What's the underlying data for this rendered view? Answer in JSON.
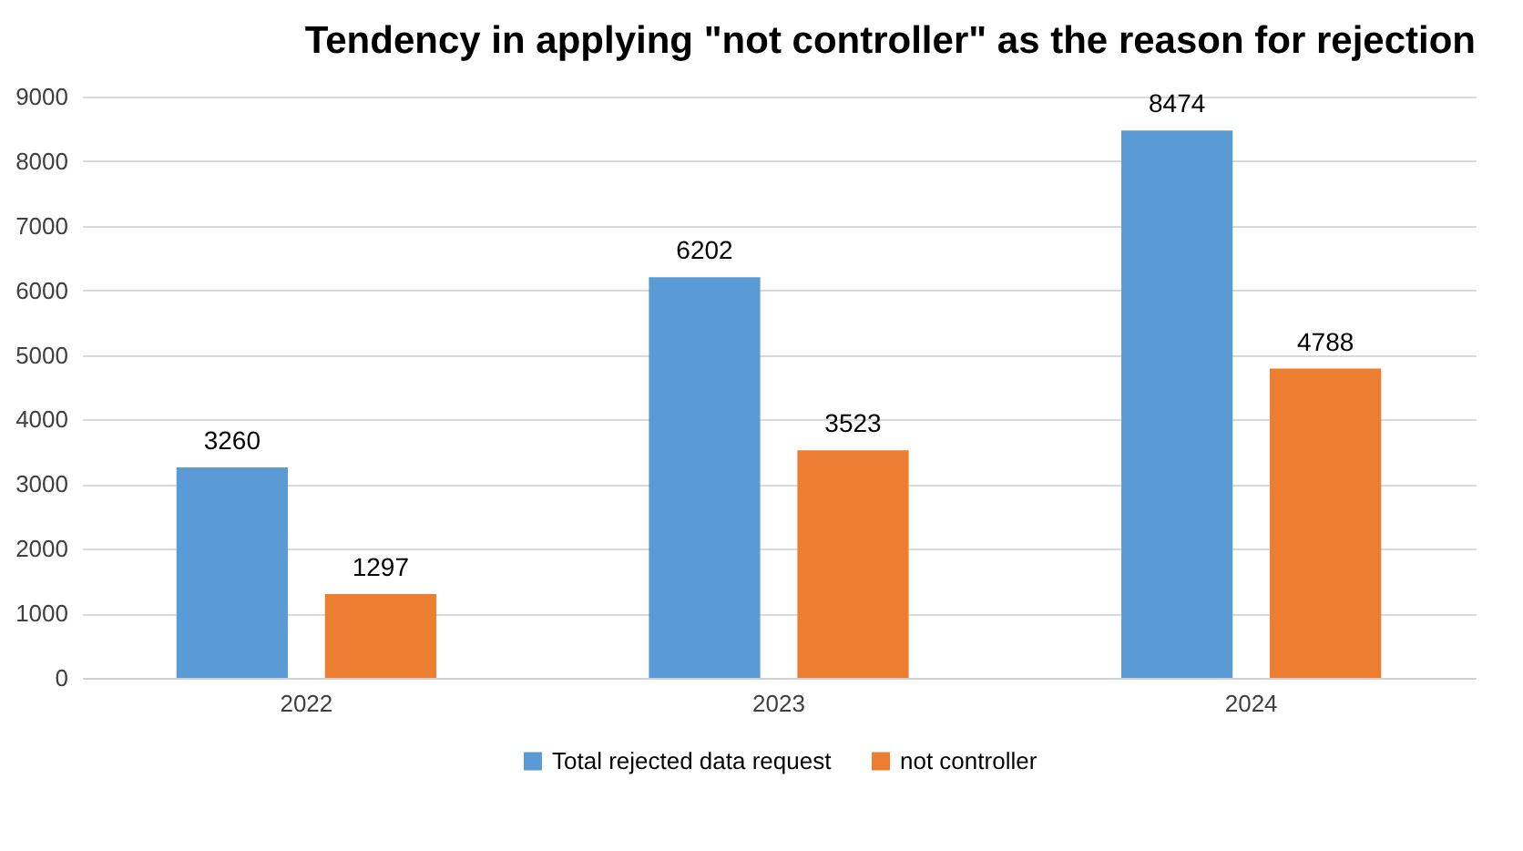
{
  "chart_data": {
    "type": "bar",
    "title": "Tendency in applying \"not controller\" as the reason for rejection",
    "categories": [
      "2022",
      "2023",
      "2024"
    ],
    "series": [
      {
        "name": "Total rejected data request",
        "color": "#5b9bd5",
        "values": [
          3260,
          6202,
          8474
        ]
      },
      {
        "name": "not controller",
        "color": "#ed7d31",
        "values": [
          1297,
          3523,
          4788
        ]
      }
    ],
    "ylim": [
      0,
      9000
    ],
    "yticks": [
      0,
      1000,
      2000,
      3000,
      4000,
      5000,
      6000,
      7000,
      8000,
      9000
    ],
    "grid": "y",
    "legend": "bottom",
    "data_labels": true
  }
}
